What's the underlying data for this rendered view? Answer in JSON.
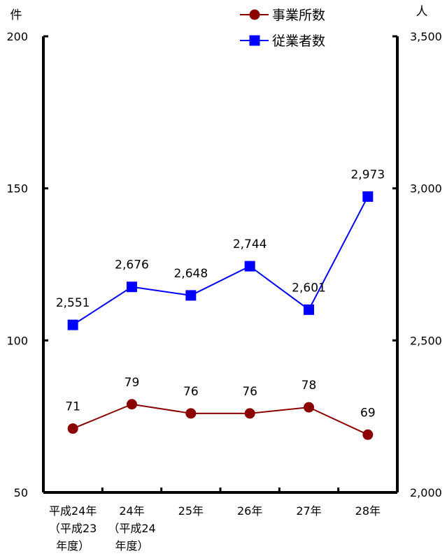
{
  "chart_data": {
    "type": "line",
    "categories": [
      [
        "平成24年",
        "（平成23",
        "年度）"
      ],
      [
        "24年",
        "（平成24",
        "年度）"
      ],
      [
        "25年"
      ],
      [
        "26年"
      ],
      [
        "27年"
      ],
      [
        "28年"
      ]
    ],
    "y_left": {
      "unit": "件",
      "min": 50,
      "max": 200,
      "ticks": [
        "50",
        "100",
        "150",
        "200"
      ],
      "tick_values": [
        50,
        100,
        150,
        200
      ]
    },
    "y_right": {
      "unit": "人",
      "min": 2000,
      "max": 3500,
      "ticks": [
        "2,000",
        "2,500",
        "3,000",
        "3,500"
      ],
      "tick_values": [
        2000,
        2500,
        3000,
        3500
      ]
    },
    "grid": false,
    "legend_position": "top-right",
    "series": [
      {
        "name": "事業所数",
        "axis": "left",
        "color": "#8b0000",
        "marker": "circle",
        "values": [
          71,
          79,
          76,
          76,
          78,
          69
        ],
        "labels": [
          "71",
          "79",
          "76",
          "76",
          "78",
          "69"
        ]
      },
      {
        "name": "従業者数",
        "axis": "right",
        "color": "#0000ff",
        "marker": "square",
        "values": [
          2551,
          2676,
          2648,
          2744,
          2601,
          2973
        ],
        "labels": [
          "2,551",
          "2,676",
          "2,648",
          "2,744",
          "2,601",
          "2,973"
        ]
      }
    ]
  }
}
